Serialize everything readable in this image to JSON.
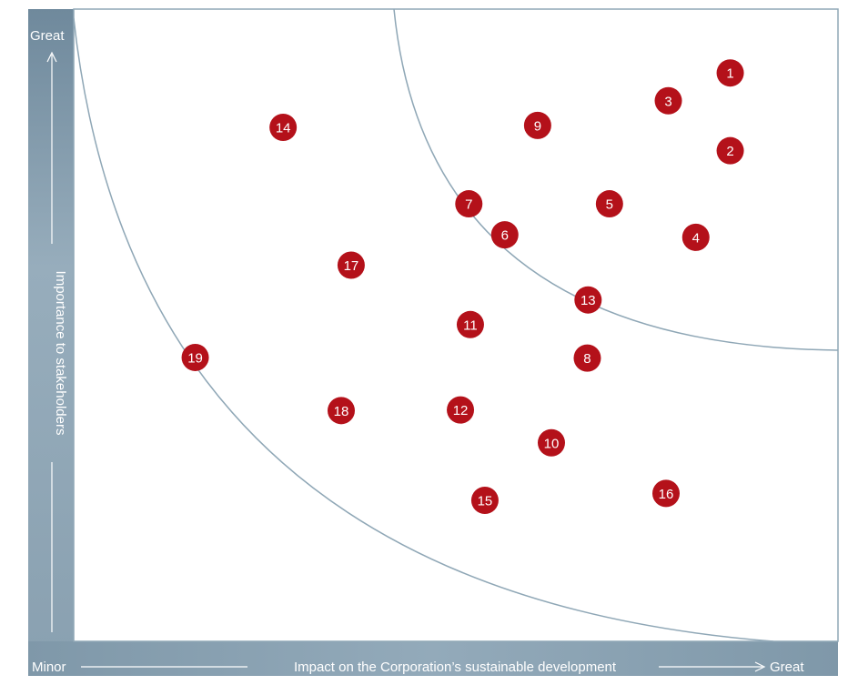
{
  "chart_data": {
    "type": "scatter",
    "title": "",
    "xlabel": "Impact on the Corporation’s sustainable development",
    "ylabel": "Importance to stakeholders",
    "x_min_label": "Minor",
    "x_max_label": "Great",
    "y_max_label": "Great",
    "xlim": [
      0,
      10
    ],
    "ylim": [
      0,
      10
    ],
    "grid": false,
    "legend": "none",
    "point_color": "#b4111a",
    "curve_color": "#8fa7b6",
    "band_color": "#8aa1b1",
    "points": [
      {
        "label": "1",
        "x": 8.59,
        "y": 8.99
      },
      {
        "label": "2",
        "x": 8.59,
        "y": 7.76
      },
      {
        "label": "3",
        "x": 7.78,
        "y": 8.55
      },
      {
        "label": "4",
        "x": 8.14,
        "y": 6.39
      },
      {
        "label": "5",
        "x": 7.01,
        "y": 6.92
      },
      {
        "label": "6",
        "x": 5.64,
        "y": 6.43
      },
      {
        "label": "7",
        "x": 5.17,
        "y": 6.92
      },
      {
        "label": "8",
        "x": 6.72,
        "y": 4.48
      },
      {
        "label": "9",
        "x": 6.07,
        "y": 8.16
      },
      {
        "label": "10",
        "x": 6.25,
        "y": 3.14
      },
      {
        "label": "11",
        "x": 5.19,
        "y": 5.01
      },
      {
        "label": "12",
        "x": 5.06,
        "y": 3.66
      },
      {
        "label": "13",
        "x": 6.73,
        "y": 5.4
      },
      {
        "label": "14",
        "x": 2.74,
        "y": 8.13
      },
      {
        "label": "15",
        "x": 5.38,
        "y": 2.23
      },
      {
        "label": "16",
        "x": 7.75,
        "y": 2.34
      },
      {
        "label": "17",
        "x": 3.63,
        "y": 5.95
      },
      {
        "label": "18",
        "x": 3.5,
        "y": 3.65
      },
      {
        "label": "19",
        "x": 1.59,
        "y": 4.49
      }
    ]
  }
}
